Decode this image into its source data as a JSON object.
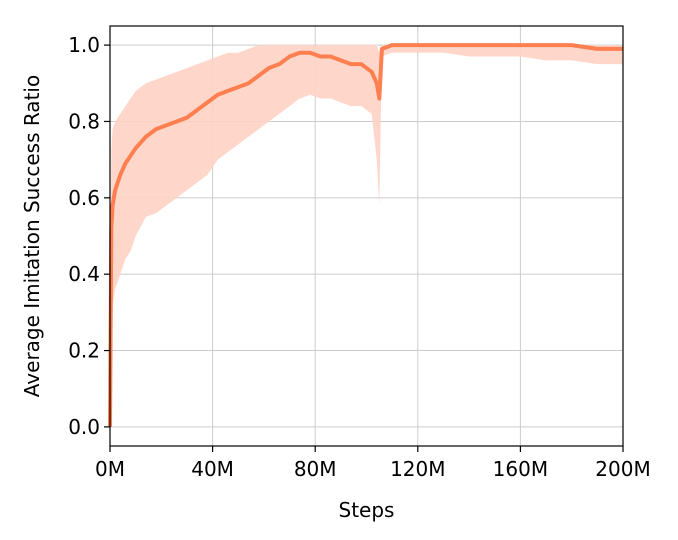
{
  "chart_data": {
    "type": "area",
    "title": "",
    "xlabel": "Steps",
    "ylabel": "Average Imitation Success Ratio",
    "xlim": [
      0,
      200
    ],
    "ylim": [
      -0.05,
      1.05
    ],
    "x_unit": "M",
    "xticks": [
      0,
      40,
      80,
      120,
      160,
      200
    ],
    "xtick_labels": [
      "0M",
      "40M",
      "80M",
      "120M",
      "160M",
      "200M"
    ],
    "yticks": [
      0.0,
      0.2,
      0.4,
      0.6,
      0.8,
      1.0
    ],
    "ytick_labels": [
      "0.0",
      "0.2",
      "0.4",
      "0.6",
      "0.8",
      "1.0"
    ],
    "grid": true,
    "legend": "none",
    "colors": {
      "line": "#ff7f50",
      "band": "#ffd3c4"
    },
    "series": [
      {
        "x": [
          0,
          0.5,
          1,
          2,
          4,
          6,
          8,
          10,
          14,
          18,
          22,
          26,
          30,
          34,
          38,
          42,
          46,
          50,
          54,
          58,
          62,
          66,
          70,
          74,
          78,
          82,
          86,
          90,
          94,
          98,
          102,
          104,
          105,
          106,
          110,
          120,
          130,
          140,
          150,
          160,
          170,
          180,
          190,
          200
        ],
        "mean": [
          0.0,
          0.52,
          0.58,
          0.62,
          0.66,
          0.69,
          0.71,
          0.73,
          0.76,
          0.78,
          0.79,
          0.8,
          0.81,
          0.83,
          0.85,
          0.87,
          0.88,
          0.89,
          0.9,
          0.92,
          0.94,
          0.95,
          0.97,
          0.98,
          0.98,
          0.97,
          0.97,
          0.96,
          0.95,
          0.95,
          0.93,
          0.9,
          0.86,
          0.99,
          1.0,
          1.0,
          1.0,
          1.0,
          1.0,
          1.0,
          1.0,
          1.0,
          0.99,
          0.99
        ],
        "lower": [
          0.0,
          0.28,
          0.32,
          0.36,
          0.4,
          0.44,
          0.46,
          0.5,
          0.55,
          0.56,
          0.58,
          0.6,
          0.62,
          0.64,
          0.66,
          0.7,
          0.72,
          0.74,
          0.76,
          0.78,
          0.8,
          0.82,
          0.84,
          0.86,
          0.87,
          0.86,
          0.86,
          0.85,
          0.84,
          0.84,
          0.82,
          0.7,
          0.58,
          0.97,
          0.98,
          0.98,
          0.98,
          0.97,
          0.97,
          0.97,
          0.96,
          0.96,
          0.95,
          0.95
        ],
        "upper": [
          0.0,
          0.72,
          0.78,
          0.8,
          0.82,
          0.84,
          0.86,
          0.88,
          0.9,
          0.91,
          0.92,
          0.93,
          0.94,
          0.95,
          0.96,
          0.97,
          0.98,
          0.98,
          0.99,
          1.0,
          1.0,
          1.0,
          1.0,
          1.0,
          1.0,
          1.0,
          1.0,
          1.0,
          1.0,
          1.0,
          1.0,
          1.0,
          0.98,
          1.0,
          1.0,
          1.0,
          1.0,
          1.0,
          1.0,
          1.0,
          1.0,
          1.0,
          1.0,
          1.0
        ]
      }
    ]
  }
}
